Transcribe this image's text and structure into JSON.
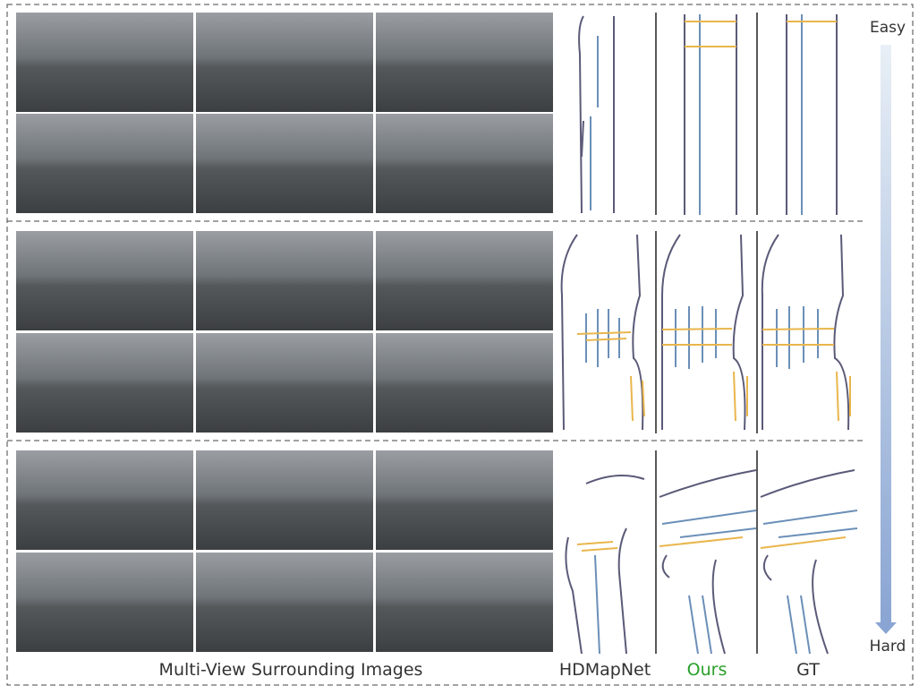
{
  "difficulty": {
    "easy": "Easy",
    "hard": "Hard"
  },
  "footer": {
    "images": "Multi-View Surrounding Images",
    "methods": [
      "HDMapNet",
      "Ours",
      "GT"
    ]
  }
}
